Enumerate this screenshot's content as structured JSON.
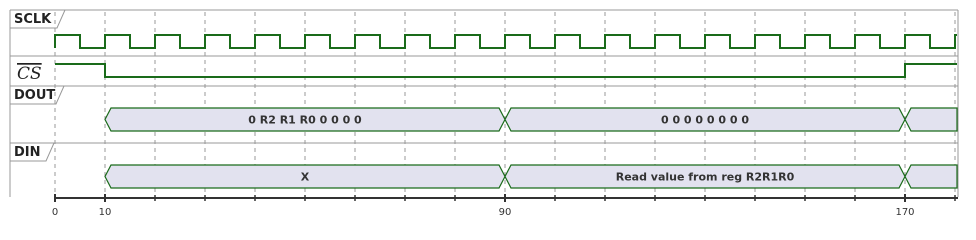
{
  "signals": [
    {
      "name": "SCLK"
    },
    {
      "name": "CS"
    },
    {
      "name": "DOUT",
      "segments": [
        "0 R2 R1 R0 0 0 0 0",
        "0 0 0 0 0 0 0 0"
      ]
    },
    {
      "name": "DIN",
      "segments": [
        "X",
        "Read value from reg R2R1R0"
      ]
    }
  ],
  "axis": {
    "ticks": [
      0,
      10,
      90,
      170
    ]
  }
}
